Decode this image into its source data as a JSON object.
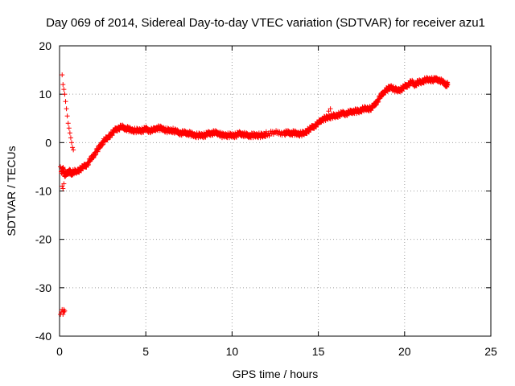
{
  "chart_data": {
    "type": "scatter",
    "title": "Day 069 of 2014, Sidereal Day-to-day VTEC variation (SDTVAR) for receiver azu1",
    "xlabel": "GPS time / hours",
    "ylabel": "SDTVAR / TECUs",
    "xlim": [
      0,
      25
    ],
    "ylim": [
      -40,
      20
    ],
    "xticks": [
      0,
      5,
      10,
      15,
      20,
      25
    ],
    "yticks": [
      -40,
      -30,
      -20,
      -10,
      0,
      10,
      20
    ],
    "xtick_labels": [
      "0",
      "5",
      "10",
      "15",
      "20",
      "25"
    ],
    "ytick_labels": [
      "-40",
      "-30",
      "-20",
      "-10",
      "0",
      "10",
      "20"
    ],
    "grid": true,
    "marker": "plus",
    "series": [
      {
        "name": "SDTVAR",
        "color": "#ff0000",
        "x": [
          0.05,
          0.1,
          0.15,
          0.2,
          0.25,
          0.3,
          0.1,
          0.2,
          0.3,
          0.4,
          0.5,
          0.6,
          0.7,
          0.8,
          1.0,
          1.2,
          1.4,
          1.6,
          1.8,
          2.0,
          2.2,
          2.4,
          2.6,
          2.8,
          3.0,
          3.2,
          3.4,
          3.6,
          3.8,
          4.0,
          4.2,
          4.4,
          4.6,
          4.8,
          5.0,
          5.2,
          5.4,
          5.6,
          5.8,
          6.0,
          6.2,
          6.4,
          6.6,
          6.8,
          7.0,
          7.2,
          7.4,
          7.6,
          7.8,
          8.0,
          8.2,
          8.4,
          8.6,
          8.8,
          9.0,
          9.2,
          9.4,
          9.6,
          9.8,
          10.0,
          10.2,
          10.4,
          10.6,
          10.8,
          11.0,
          11.2,
          11.4,
          11.6,
          11.8,
          12.0,
          12.5,
          13.0,
          13.2,
          13.4,
          13.6,
          13.8,
          14.0,
          14.2,
          14.4,
          14.6,
          14.8,
          15.0,
          15.2,
          15.4,
          15.6,
          15.8,
          16.0,
          16.2,
          16.4,
          16.6,
          16.8,
          17.0,
          17.2,
          17.4,
          17.6,
          17.8,
          18.0,
          18.2,
          18.4,
          18.6,
          18.8,
          19.0,
          19.2,
          19.4,
          19.6,
          19.8,
          20.0,
          20.2,
          20.4,
          20.6,
          20.8,
          21.0,
          21.2,
          21.4,
          21.6,
          21.8,
          22.0,
          22.2,
          22.4,
          22.5,
          0.15,
          0.2,
          0.25,
          0.3,
          0.35,
          0.4,
          0.45,
          0.5,
          0.55,
          0.6,
          0.65,
          0.7,
          0.75,
          0.8,
          0.05,
          0.1,
          0.15,
          0.2,
          0.25,
          0.2,
          0.25,
          0.3,
          15.6,
          15.7
        ],
        "y": [
          -5.0,
          -6.0,
          -9.0,
          -9.5,
          -8.5,
          -7.0,
          -6.0,
          -5.5,
          -6.5,
          -6.5,
          -6.0,
          -6.0,
          -6.5,
          -6.0,
          -6.0,
          -5.5,
          -5.0,
          -4.5,
          -3.5,
          -2.5,
          -1.5,
          -0.5,
          0.5,
          1.0,
          1.8,
          2.5,
          3.0,
          3.2,
          3.0,
          2.8,
          2.5,
          2.5,
          2.5,
          2.5,
          2.8,
          2.5,
          2.5,
          3.0,
          3.0,
          2.8,
          2.5,
          2.5,
          2.5,
          2.2,
          2.0,
          2.0,
          2.0,
          1.8,
          1.5,
          1.5,
          1.5,
          1.5,
          1.8,
          2.0,
          2.0,
          2.0,
          1.5,
          1.5,
          1.5,
          1.5,
          1.5,
          1.8,
          1.8,
          1.5,
          1.5,
          1.5,
          1.5,
          1.5,
          1.5,
          1.8,
          2.0,
          2.0,
          2.0,
          2.0,
          2.0,
          1.8,
          1.8,
          2.0,
          2.5,
          3.0,
          3.5,
          4.0,
          4.8,
          5.0,
          5.2,
          5.5,
          5.5,
          5.8,
          6.0,
          6.0,
          6.2,
          6.5,
          6.5,
          6.5,
          7.0,
          7.0,
          7.0,
          7.5,
          8.5,
          9.5,
          10.5,
          11.0,
          11.5,
          11.0,
          10.8,
          11.0,
          11.5,
          12.0,
          12.5,
          12.0,
          12.5,
          12.5,
          13.0,
          13.0,
          13.0,
          13.0,
          13.0,
          12.5,
          12.0,
          12.0,
          14.0,
          12.0,
          11.0,
          10.0,
          8.5,
          7.0,
          5.5,
          4.0,
          3.0,
          2.0,
          1.0,
          0.0,
          -1.0,
          -1.5,
          -35.5,
          -35.0,
          -34.5,
          -35.0,
          -34.5,
          -35.5,
          -35.0,
          -34.8,
          6.5,
          7.0
        ]
      }
    ]
  }
}
